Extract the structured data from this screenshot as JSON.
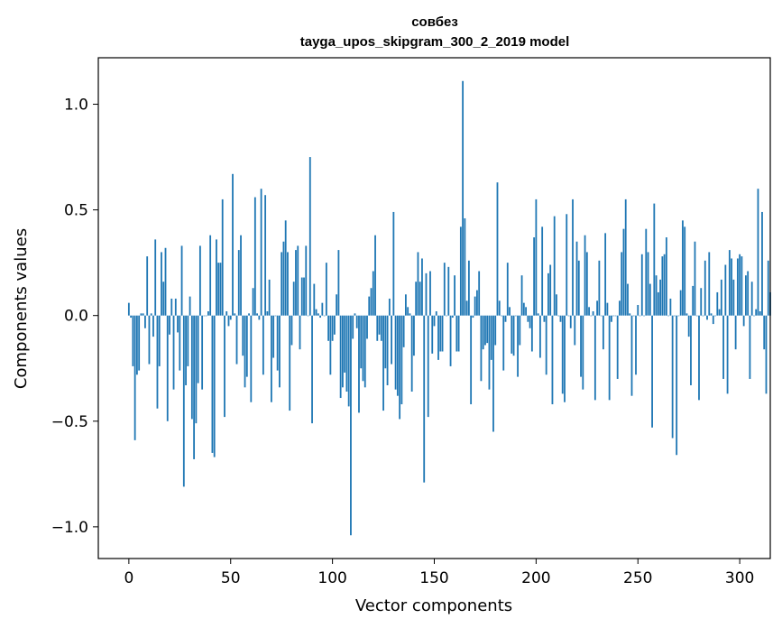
{
  "chart_data": {
    "type": "bar",
    "title": "совбез",
    "subtitle": "tayga_upos_skipgram_300_2_2019 model",
    "xlabel": "Vector components",
    "ylabel": "Components values",
    "xlim": [
      -15,
      315
    ],
    "ylim": [
      -1.15,
      1.22
    ],
    "xticks": [
      0,
      50,
      100,
      150,
      200,
      250,
      300
    ],
    "yticks": [
      -1.0,
      -0.5,
      0.0,
      0.5,
      1.0
    ],
    "ytick_labels": [
      "−1.0",
      "−0.5",
      "0.0",
      "0.5",
      "1.0"
    ],
    "xtick_labels": [
      "0",
      "50",
      "100",
      "150",
      "200",
      "250",
      "300"
    ],
    "grid": false,
    "bar_color": "#1f77b4",
    "values": [
      0.06,
      -0.01,
      -0.24,
      -0.59,
      -0.28,
      -0.26,
      0.01,
      0.01,
      -0.06,
      0.28,
      -0.23,
      0.01,
      -0.1,
      0.36,
      -0.44,
      -0.24,
      0.3,
      0.16,
      0.32,
      -0.5,
      -0.09,
      0.08,
      -0.35,
      0.08,
      -0.08,
      -0.26,
      0.33,
      -0.81,
      -0.33,
      -0.24,
      0.09,
      -0.49,
      -0.68,
      -0.51,
      -0.32,
      0.33,
      -0.35,
      0.0,
      0.0,
      0.02,
      0.38,
      -0.65,
      -0.67,
      0.36,
      0.25,
      0.25,
      0.55,
      -0.48,
      0.02,
      -0.05,
      -0.02,
      0.67,
      0.01,
      -0.23,
      0.31,
      0.38,
      -0.19,
      -0.34,
      -0.29,
      0.01,
      -0.41,
      0.13,
      0.56,
      0.01,
      -0.02,
      0.6,
      -0.28,
      0.57,
      0.02,
      0.17,
      -0.41,
      -0.2,
      0.0,
      -0.26,
      -0.34,
      0.3,
      0.35,
      0.45,
      0.3,
      -0.45,
      -0.14,
      0.16,
      0.31,
      0.33,
      -0.16,
      0.18,
      0.18,
      0.33,
      0.0,
      0.75,
      -0.51,
      0.15,
      0.03,
      0.01,
      -0.01,
      0.06,
      0.0,
      0.25,
      -0.12,
      -0.28,
      -0.12,
      -0.09,
      0.1,
      0.31,
      -0.39,
      -0.34,
      -0.27,
      -0.36,
      -0.43,
      -1.04,
      -0.11,
      0.01,
      -0.06,
      -0.46,
      -0.25,
      -0.31,
      -0.34,
      -0.11,
      0.09,
      0.13,
      0.21,
      0.38,
      -0.12,
      -0.09,
      -0.12,
      -0.45,
      -0.25,
      -0.33,
      0.08,
      -0.23,
      0.49,
      -0.35,
      -0.38,
      -0.49,
      -0.42,
      -0.15,
      0.1,
      0.04,
      0.01,
      -0.36,
      -0.19,
      0.16,
      0.3,
      0.16,
      0.27,
      -0.79,
      0.2,
      -0.48,
      0.21,
      -0.18,
      -0.05,
      0.02,
      -0.21,
      -0.17,
      -0.17,
      0.25,
      0.0,
      0.23,
      -0.24,
      -0.01,
      0.19,
      -0.17,
      -0.17,
      0.42,
      1.11,
      0.46,
      0.07,
      0.26,
      -0.42,
      -0.01,
      0.09,
      0.12,
      0.21,
      -0.31,
      -0.16,
      -0.14,
      -0.13,
      -0.35,
      -0.21,
      -0.55,
      -0.14,
      0.63,
      0.07,
      0.0,
      -0.26,
      -0.03,
      0.25,
      0.04,
      -0.18,
      -0.19,
      0.0,
      -0.29,
      -0.14,
      0.19,
      0.06,
      0.04,
      -0.03,
      -0.06,
      -0.17,
      0.37,
      0.55,
      0.01,
      -0.2,
      0.42,
      -0.03,
      -0.28,
      0.2,
      0.24,
      -0.42,
      0.47,
      0.1,
      0.0,
      -0.03,
      -0.37,
      -0.41,
      0.48,
      0.0,
      -0.06,
      0.55,
      -0.14,
      0.35,
      0.26,
      -0.29,
      -0.35,
      0.38,
      0.3,
      0.04,
      0.0,
      0.02,
      -0.4,
      0.07,
      0.26,
      0.0,
      -0.16,
      0.39,
      0.06,
      -0.4,
      -0.03,
      0.0,
      0.0,
      -0.3,
      0.07,
      0.3,
      0.41,
      0.55,
      0.15,
      0.01,
      -0.38,
      0.0,
      -0.28,
      0.05,
      0.0,
      0.29,
      0.0,
      0.41,
      0.3,
      0.15,
      -0.53,
      0.53,
      0.19,
      0.11,
      0.17,
      0.28,
      0.29,
      0.37,
      0.0,
      0.08,
      -0.58,
      0.0,
      -0.66,
      0.0,
      0.12,
      0.45,
      0.42,
      0.01,
      -0.1,
      -0.33,
      0.14,
      0.35,
      0.0,
      -0.4,
      0.13,
      0.0,
      0.26,
      -0.02,
      0.3,
      0.01,
      -0.04,
      0.0,
      0.11,
      0.03,
      0.17,
      -0.3,
      0.24,
      -0.37,
      0.31,
      0.27,
      0.17,
      -0.16,
      0.27,
      0.29,
      0.28,
      -0.05,
      0.19,
      0.21,
      -0.3,
      0.16,
      0.0,
      0.03,
      0.6,
      0.02,
      0.49,
      -0.16,
      -0.37,
      0.26,
      0.11
    ]
  }
}
